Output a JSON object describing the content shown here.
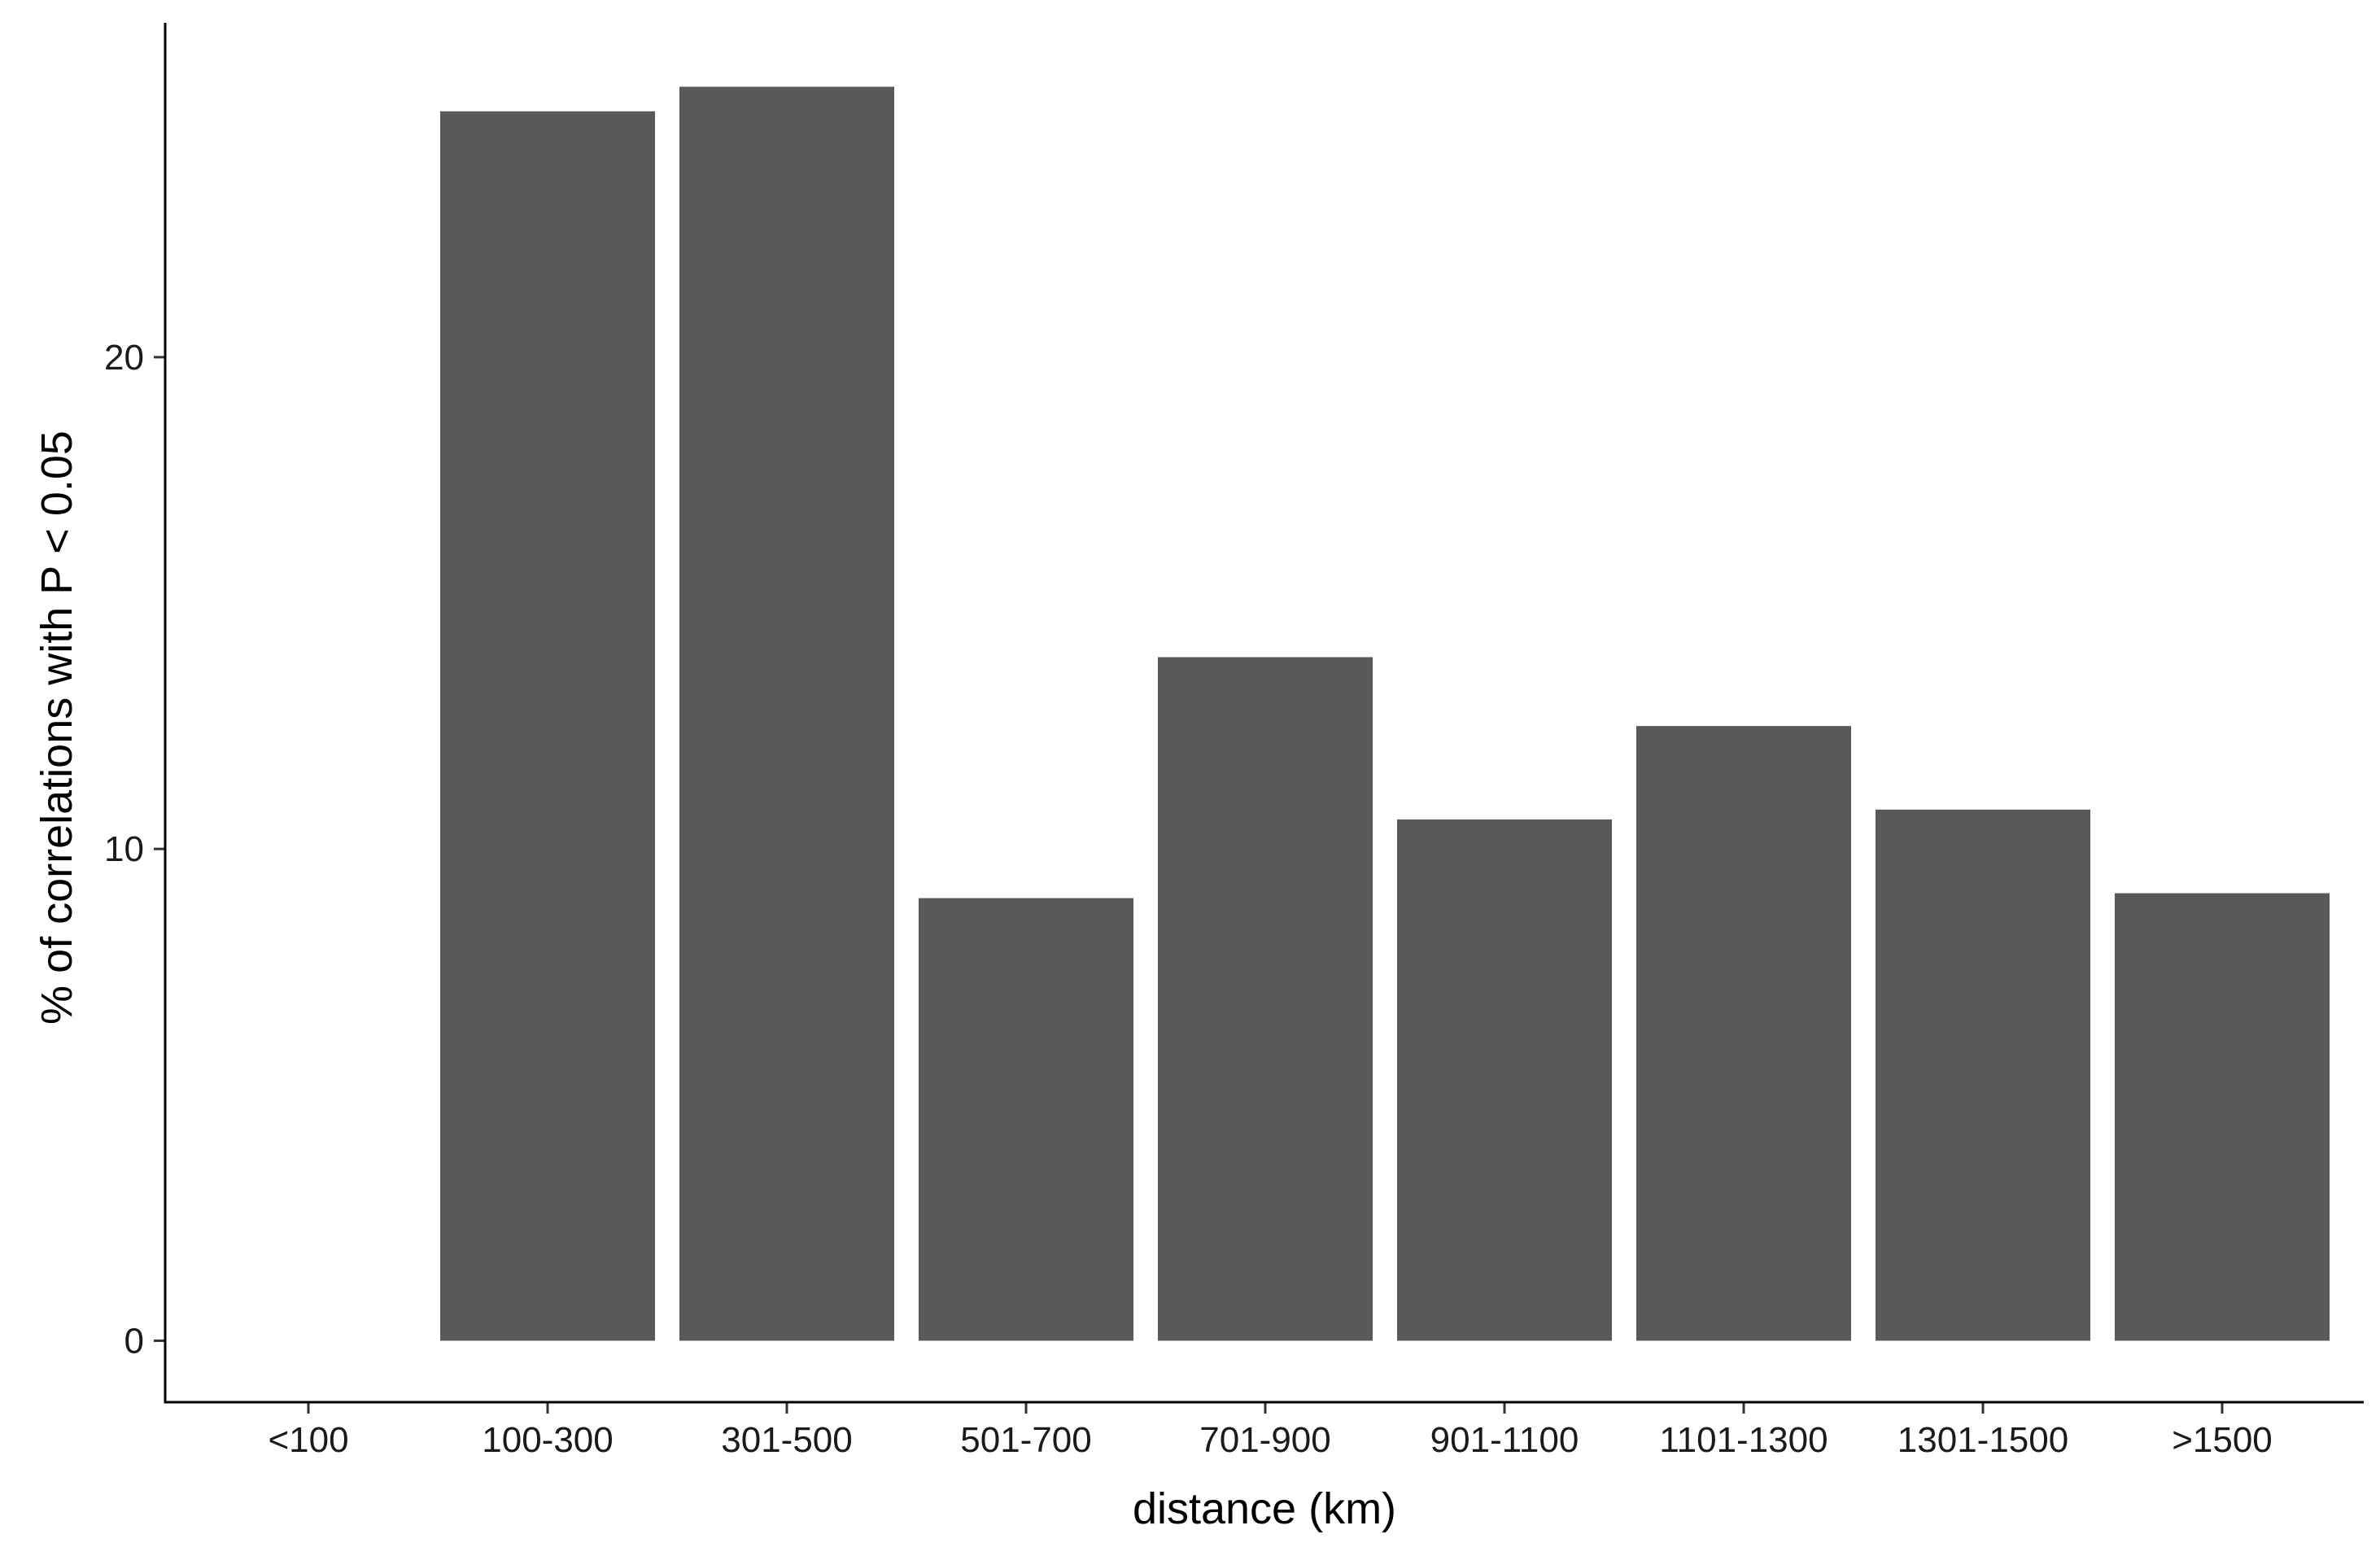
{
  "chart_data": {
    "type": "bar",
    "categories": [
      "<100",
      "100-300",
      "301-500",
      "501-700",
      "701-900",
      "901-1100",
      "1101-1300",
      "1301-1500",
      ">1500"
    ],
    "values": [
      0,
      25.0,
      25.5,
      9.0,
      13.9,
      10.6,
      12.5,
      10.8,
      9.1
    ],
    "xlabel": "distance (km)",
    "ylabel": "% of correlations with P < 0.05",
    "ylim": [
      -1.25,
      26.8
    ],
    "yticks": [
      0,
      10,
      20
    ],
    "bar_color": "#595959",
    "grid": false,
    "legend": "none"
  }
}
